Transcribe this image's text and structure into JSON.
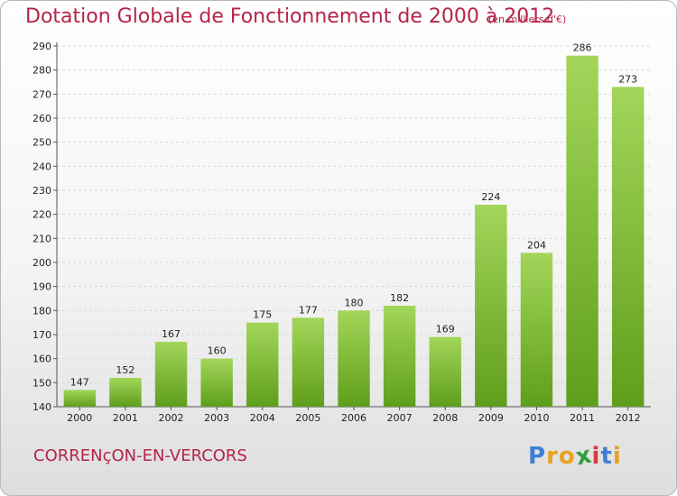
{
  "header": {
    "title": "Dotation Globale de Fonctionnement de 2000 à 2012",
    "subtitle": "(en milliers d'€)"
  },
  "footer": {
    "commune": "CORRENçON-EN-VERCORS",
    "logo_letters": [
      "P",
      "r",
      "o",
      "x",
      "i",
      "t",
      "i"
    ],
    "logo_colors": [
      "#3d7fd4",
      "#e8a21e",
      "#e8a21e",
      "#2e9c3e",
      "#d93a3a",
      "#3d7fd4",
      "#e8a21e"
    ]
  },
  "colors": {
    "bar_top": "#a3d65a",
    "bar_bottom": "#5f9e1c",
    "grid": "#d8d8d8",
    "accent": "#b5234a"
  },
  "chart_data": {
    "type": "bar",
    "title": "Dotation Globale de Fonctionnement de 2000 à 2012",
    "subtitle": "(en milliers d'€)",
    "categories": [
      "2000",
      "2001",
      "2002",
      "2003",
      "2004",
      "2005",
      "2006",
      "2007",
      "2008",
      "2009",
      "2010",
      "2011",
      "2012"
    ],
    "values": [
      147,
      152,
      167,
      160,
      175,
      177,
      180,
      182,
      169,
      224,
      204,
      286,
      273
    ],
    "ylim": [
      140,
      290
    ],
    "yticks": [
      140,
      150,
      160,
      170,
      180,
      190,
      200,
      210,
      220,
      230,
      240,
      250,
      260,
      270,
      280,
      290
    ],
    "grid": true,
    "xlabel": "",
    "ylabel": ""
  }
}
